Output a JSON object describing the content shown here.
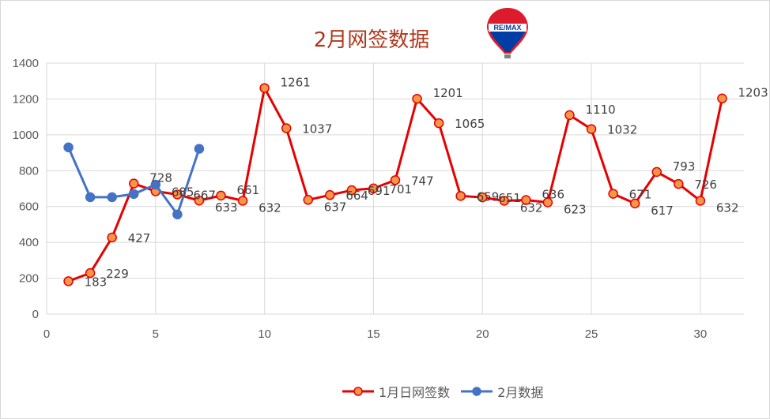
{
  "chart_data": {
    "type": "scatter",
    "title": "2月网签数据",
    "xlim": [
      0,
      32
    ],
    "ylim": [
      0,
      1400
    ],
    "xticks": [
      0,
      5,
      10,
      15,
      20,
      25,
      30
    ],
    "yticks": [
      0,
      200,
      400,
      600,
      800,
      1000,
      1200,
      1400
    ],
    "grid": true,
    "legend_position": "bottom",
    "series": [
      {
        "name": "1月日网签数",
        "color": "#e60000",
        "marker_fill": "#f79646",
        "x": [
          1,
          2,
          3,
          4,
          5,
          6,
          7,
          8,
          9,
          10,
          11,
          12,
          13,
          14,
          15,
          16,
          17,
          18,
          19,
          20,
          21,
          22,
          23,
          24,
          25,
          26,
          27,
          28,
          29,
          30,
          31
        ],
        "values": [
          183,
          229,
          427,
          728,
          685,
          667,
          633,
          661,
          632,
          1261,
          1037,
          637,
          664,
          691,
          701,
          747,
          1201,
          1065,
          659,
          651,
          632,
          636,
          623,
          1110,
          1032,
          671,
          617,
          793,
          726,
          632,
          1203
        ]
      },
      {
        "name": "2月数据",
        "color": "#4472c4",
        "marker_fill": "#4472c4",
        "x": [
          1,
          2,
          3,
          4,
          5,
          6,
          7
        ],
        "values": [
          930,
          652,
          652,
          670,
          722,
          556,
          922
        ]
      }
    ]
  },
  "logo": {
    "text": "RE/MAX",
    "colors": {
      "red": "#dc1c2e",
      "blue": "#003da5"
    }
  }
}
